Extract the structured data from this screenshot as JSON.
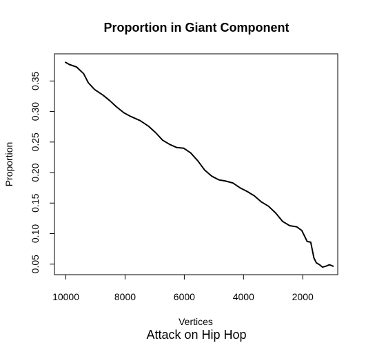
{
  "chart_data": {
    "type": "line",
    "title": "Proportion in Giant Component",
    "xlabel": "Vertices",
    "ylabel": "Proportion",
    "caption": "Attack on Hip Hop",
    "x_reversed": true,
    "xlim": [
      10385,
      818
    ],
    "ylim": [
      0.0327,
      0.3945
    ],
    "xticks": [
      10000,
      8000,
      6000,
      4000,
      2000
    ],
    "xtick_labels": [
      "10000",
      "8000",
      "6000",
      "4000",
      "2000"
    ],
    "yticks": [
      0.05,
      0.1,
      0.15,
      0.2,
      0.25,
      0.3,
      0.35
    ],
    "ytick_labels": [
      "0.05",
      "0.10",
      "0.15",
      "0.20",
      "0.25",
      "0.30",
      "0.35"
    ],
    "grid": false,
    "legend": false,
    "line_color": "#000000",
    "series": [
      {
        "x": [
          10030,
          9880,
          9640,
          9400,
          9240,
          9030,
          8750,
          8520,
          8300,
          8040,
          7810,
          7490,
          7210,
          6960,
          6730,
          6490,
          6250,
          6020,
          5780,
          5540,
          5310,
          5070,
          4830,
          4600,
          4360,
          4120,
          3880,
          3640,
          3400,
          3160,
          2920,
          2680,
          2440,
          2200,
          2030,
          1850,
          1730,
          1620,
          1540,
          1430,
          1330,
          1200,
          1100,
          990,
          960
        ],
        "y": [
          0.381,
          0.377,
          0.373,
          0.362,
          0.347,
          0.336,
          0.327,
          0.318,
          0.308,
          0.298,
          0.292,
          0.285,
          0.276,
          0.265,
          0.253,
          0.246,
          0.241,
          0.24,
          0.232,
          0.219,
          0.204,
          0.194,
          0.188,
          0.186,
          0.183,
          0.175,
          0.169,
          0.162,
          0.152,
          0.145,
          0.134,
          0.12,
          0.113,
          0.111,
          0.105,
          0.087,
          0.086,
          0.06,
          0.052,
          0.049,
          0.045,
          0.047,
          0.049,
          0.047,
          0.046
        ]
      }
    ]
  }
}
